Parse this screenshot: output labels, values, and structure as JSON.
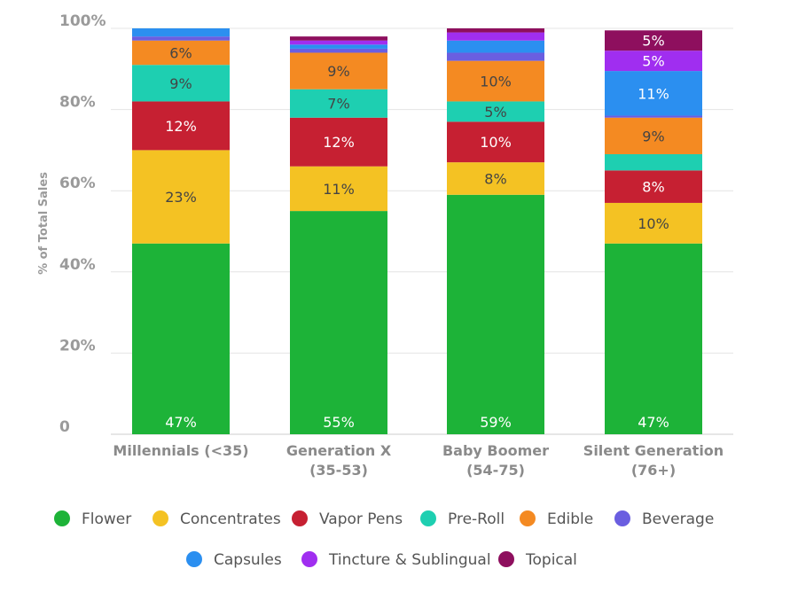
{
  "chart_data": {
    "type": "bar",
    "stacked": true,
    "ylabel": "% of Total Sales",
    "ylim": [
      0,
      100
    ],
    "yticks": [
      "0",
      "20%",
      "40%",
      "60%",
      "80%",
      "100%"
    ],
    "categories": [
      [
        "Millennials (<35)"
      ],
      [
        "Generation X",
        "(35-53)"
      ],
      [
        "Baby Boomer",
        "(54-75)"
      ],
      [
        "Silent Generation",
        "(76+)"
      ]
    ],
    "legend_position": "bottom",
    "series": [
      {
        "name": "Flower",
        "color": "#1db338",
        "values": [
          47,
          55,
          59,
          47
        ],
        "labels": [
          "47%",
          "55%",
          "59%",
          "47%"
        ],
        "label_color": "#ffffff"
      },
      {
        "name": "Concentrates",
        "color": "#f4c223",
        "values": [
          23,
          11,
          8,
          10
        ],
        "labels": [
          "23%",
          "11%",
          "8%",
          "10%"
        ],
        "label_color": "#444444"
      },
      {
        "name": "Vapor Pens",
        "color": "#c62032",
        "values": [
          12,
          12,
          10,
          8
        ],
        "labels": [
          "12%",
          "12%",
          "10%",
          "8%"
        ],
        "label_color": "#ffffff"
      },
      {
        "name": "Pre-Roll",
        "color": "#1ecfb1",
        "values": [
          9,
          7,
          5,
          4
        ],
        "labels": [
          "9%",
          "7%",
          "5%",
          ""
        ],
        "label_color": "#444444"
      },
      {
        "name": "Edible",
        "color": "#f48a22",
        "values": [
          6,
          9,
          10,
          9
        ],
        "labels": [
          "6%",
          "9%",
          "10%",
          "9%"
        ],
        "label_color": "#444444"
      },
      {
        "name": "Beverage",
        "color": "#6a5ee0",
        "values": [
          1,
          1,
          2,
          0.5
        ],
        "labels": [
          "",
          "",
          "",
          ""
        ],
        "label_color": "#ffffff"
      },
      {
        "name": "Capsules",
        "color": "#2b8ff0",
        "values": [
          2,
          1,
          3,
          11
        ],
        "labels": [
          "",
          "",
          "",
          "11%"
        ],
        "label_color": "#ffffff"
      },
      {
        "name": "Tincture & Sublingual",
        "color": "#a02ef0",
        "values": [
          0,
          1,
          2,
          5
        ],
        "labels": [
          "",
          "",
          "",
          "5%"
        ],
        "label_color": "#ffffff"
      },
      {
        "name": "Topical",
        "color": "#8e0f5e",
        "values": [
          0,
          1,
          1,
          5
        ],
        "labels": [
          "",
          "",
          "",
          "5%"
        ],
        "label_color": "#ffffff"
      }
    ]
  }
}
